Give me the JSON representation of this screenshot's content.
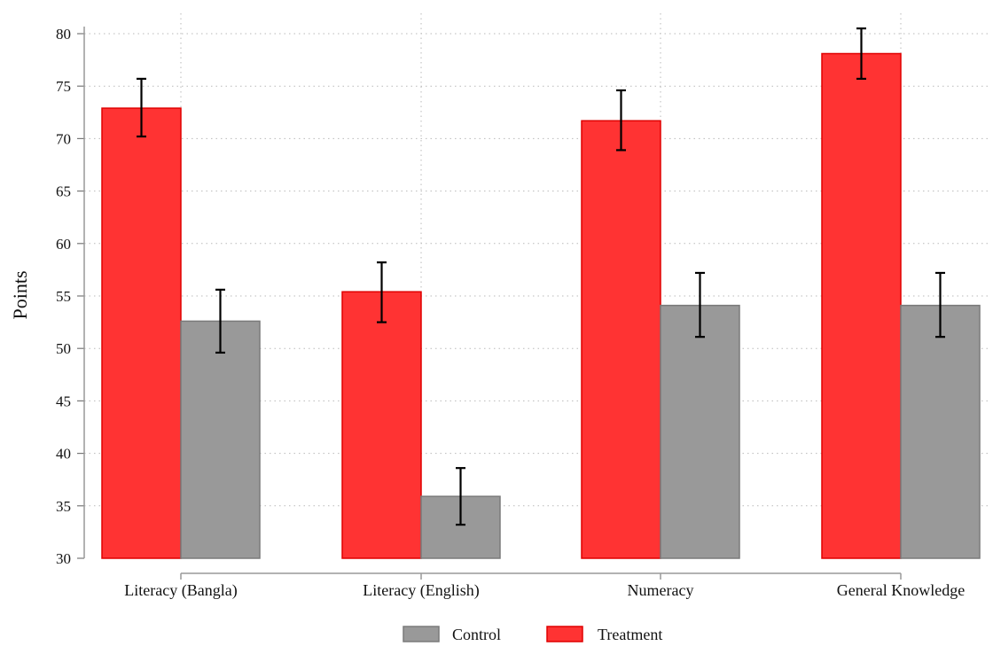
{
  "chart_data": {
    "type": "bar",
    "ylabel": "Points",
    "xlabel": "",
    "ylim": [
      30,
      82
    ],
    "yticks": [
      30,
      35,
      40,
      45,
      50,
      55,
      60,
      65,
      70,
      75,
      80
    ],
    "grid": true,
    "legend_position": "bottom",
    "categories": [
      "Literacy (Bangla)",
      "Literacy (English)",
      "Numeracy",
      "General Knowledge"
    ],
    "series": [
      {
        "name": "Treatment",
        "color": "#ff3333",
        "values": [
          72.9,
          55.4,
          71.7,
          78.1
        ],
        "ci_low": [
          70.2,
          52.5,
          68.9,
          75.7
        ],
        "ci_high": [
          75.7,
          58.2,
          74.6,
          80.5
        ]
      },
      {
        "name": "Control",
        "color": "#999999",
        "values": [
          52.6,
          35.9,
          54.1,
          54.1
        ],
        "ci_low": [
          49.6,
          33.2,
          51.1,
          51.1
        ],
        "ci_high": [
          55.6,
          38.6,
          57.2,
          57.2
        ]
      }
    ],
    "legend": [
      "Control",
      "Treatment"
    ]
  }
}
